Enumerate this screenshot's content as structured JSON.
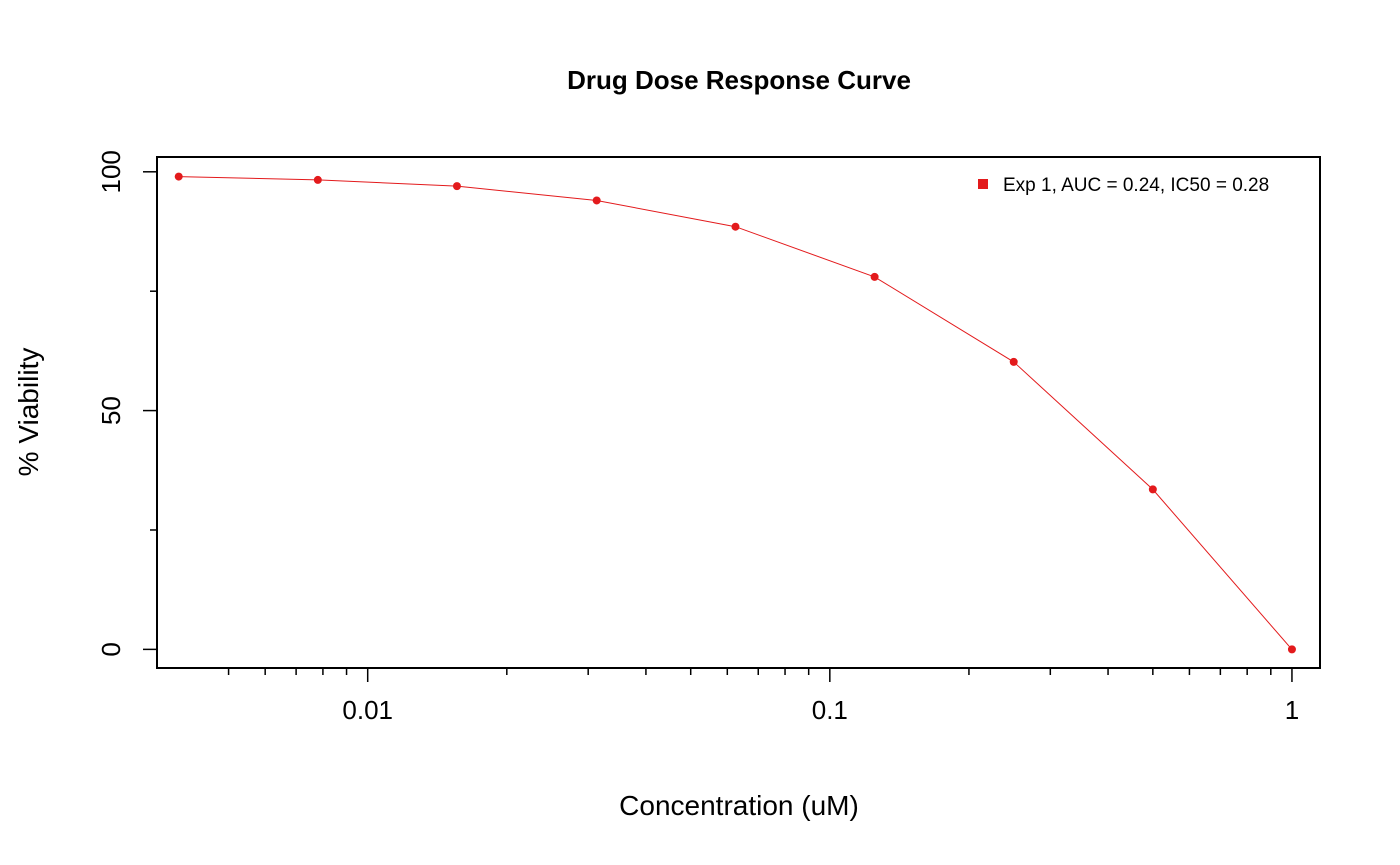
{
  "chart_data": {
    "type": "line",
    "title": "Drug Dose Response Curve",
    "xlabel": "Concentration (uM)",
    "ylabel": "% Viability",
    "x_scale": "log",
    "xlim": [
      0.0035,
      1.15
    ],
    "ylim": [
      -3.9,
      103.1
    ],
    "x_ticks": [
      {
        "value": 0.01,
        "label": "0.01"
      },
      {
        "value": 0.1,
        "label": "0.1"
      },
      {
        "value": 1,
        "label": "1"
      }
    ],
    "x_minor_ticks": [
      0.005,
      0.006,
      0.007,
      0.008,
      0.009,
      0.02,
      0.03,
      0.04,
      0.05,
      0.06,
      0.07,
      0.08,
      0.09,
      0.2,
      0.3,
      0.4,
      0.5,
      0.6,
      0.7,
      0.8,
      0.9
    ],
    "y_ticks": [
      {
        "value": 0,
        "label": "0"
      },
      {
        "value": 50,
        "label": "50"
      },
      {
        "value": 100,
        "label": "100"
      }
    ],
    "y_minor_ticks": [
      25,
      75
    ],
    "grid": false,
    "legend_position": "top-right",
    "series": [
      {
        "name": "Exp 1, AUC = 0.24, IC50 = 0.28",
        "color": "#e31a1c",
        "x": [
          0.0039,
          0.0078,
          0.0156,
          0.0313,
          0.0625,
          0.125,
          0.25,
          0.5,
          1
        ],
        "y": [
          99,
          98.3,
          97,
          94,
          88.5,
          78,
          60.2,
          33.5,
          0
        ]
      }
    ]
  }
}
